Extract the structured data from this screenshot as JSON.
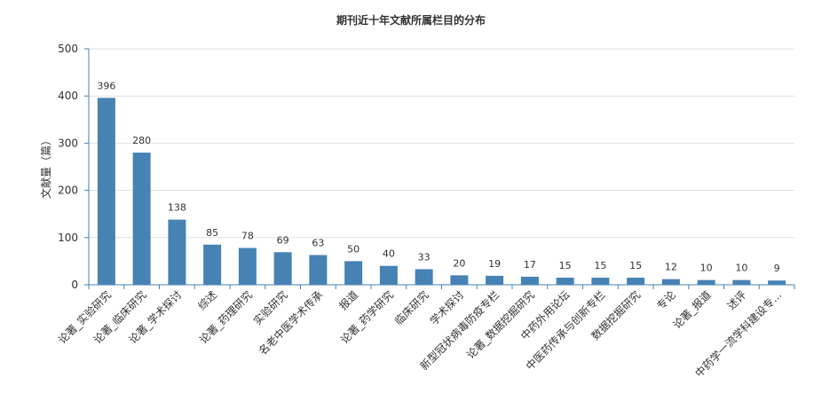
{
  "chart_data": {
    "type": "bar",
    "title": "期刊近十年文献所属栏目的分布",
    "ylabel": "文献量（篇）",
    "xlabel": "",
    "ylim": [
      0,
      500
    ],
    "yticks": [
      "0",
      "100",
      "200",
      "300",
      "400",
      "500"
    ],
    "grid": true,
    "legend": "none",
    "bar_color": "#4682b4",
    "categories": [
      "论著_实验研究",
      "论著_临床研究",
      "论著_学术探讨",
      "综述",
      "论著_药理研究",
      "实验研究",
      "名老中医学术传承",
      "报道",
      "论著_药学研究",
      "临床研究",
      "学术探讨",
      "新型冠状病毒防疫专栏",
      "论著_数据挖掘研究",
      "中药外用论坛",
      "中医药传承与创新专栏",
      "数据挖掘研究",
      "专论",
      "论著_报道",
      "述评",
      "中药学一流学科建设专..."
    ],
    "values": [
      396,
      280,
      138,
      85,
      78,
      69,
      63,
      50,
      40,
      33,
      20,
      19,
      17,
      15,
      15,
      15,
      12,
      10,
      10,
      9
    ]
  }
}
